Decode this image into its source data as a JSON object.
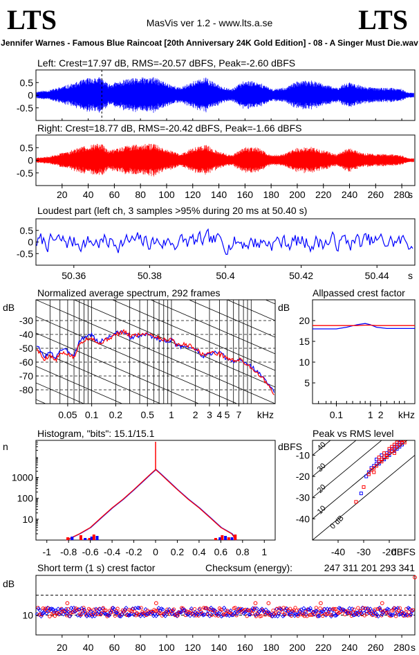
{
  "header": {
    "logo_left": "LTS",
    "logo_right": "LTS",
    "app_title": "MasVis ver 1.2 - www.lts.a.se",
    "track_title": "Jennifer Warnes - Famous Blue Raincoat [20th Anniversary 24K Gold Edition] - 08 - A Singer Must Die.wav"
  },
  "colors": {
    "left": "#0000ff",
    "right": "#ff0000",
    "axis": "#000000",
    "grid_dash": "#000000"
  },
  "chart_data": [
    {
      "id": "waveform-left",
      "type": "line",
      "title": "Left: Crest=17.97 dB, RMS=-20.57 dBFS, Peak=-2.60 dBFS",
      "ylim": [
        -1,
        1
      ],
      "xlim": [
        0,
        290
      ],
      "yticks": [
        0.5,
        0,
        -0.5
      ],
      "ytick_labels": [
        "0.5",
        "0",
        "-0.5"
      ],
      "marker_x": 50.4,
      "envelope_time": [
        0,
        10,
        20,
        30,
        40,
        50,
        55,
        60,
        70,
        80,
        90,
        100,
        110,
        120,
        130,
        140,
        150,
        160,
        170,
        180,
        190,
        200,
        210,
        220,
        230,
        240,
        250,
        260,
        270,
        280,
        285
      ],
      "envelope_amp": [
        0.15,
        0.2,
        0.35,
        0.5,
        0.7,
        0.72,
        0.45,
        0.5,
        0.65,
        0.7,
        0.72,
        0.5,
        0.3,
        0.55,
        0.7,
        0.4,
        0.25,
        0.6,
        0.55,
        0.25,
        0.3,
        0.55,
        0.6,
        0.45,
        0.3,
        0.55,
        0.35,
        0.3,
        0.3,
        0.25,
        0.1
      ]
    },
    {
      "id": "waveform-right",
      "type": "line",
      "title": "Right: Crest=18.77 dB, RMS=-20.42 dBFS, Peak=-1.66 dBFS",
      "ylim": [
        -1,
        1
      ],
      "xlim": [
        0,
        290
      ],
      "yticks": [
        0.5,
        0,
        -0.5
      ],
      "ytick_labels": [
        "0.5",
        "0",
        "-0.5"
      ],
      "xticks": [
        20,
        40,
        60,
        80,
        100,
        120,
        140,
        160,
        180,
        200,
        220,
        240,
        260,
        280
      ],
      "xtick_labels": [
        "20",
        "40",
        "60",
        "80",
        "100",
        "120",
        "140",
        "160",
        "180",
        "200",
        "220",
        "240",
        "260",
        "280"
      ],
      "xunit": "s",
      "envelope_time": [
        0,
        10,
        20,
        30,
        40,
        50,
        55,
        60,
        70,
        80,
        90,
        100,
        110,
        120,
        130,
        140,
        150,
        160,
        170,
        180,
        190,
        200,
        210,
        220,
        230,
        240,
        250,
        260,
        270,
        280,
        285
      ],
      "envelope_amp": [
        0.1,
        0.15,
        0.3,
        0.45,
        0.62,
        0.68,
        0.4,
        0.45,
        0.6,
        0.65,
        0.67,
        0.45,
        0.25,
        0.5,
        0.65,
        0.35,
        0.2,
        0.55,
        0.5,
        0.2,
        0.25,
        0.5,
        0.55,
        0.4,
        0.25,
        0.5,
        0.3,
        0.25,
        0.25,
        0.2,
        0.08
      ]
    },
    {
      "id": "loudest-part",
      "type": "line",
      "title": "Loudest part (left  ch, 3 samples >95% during 20 ms at 50.40 s)",
      "ylim": [
        -1,
        1
      ],
      "xlim": [
        50.35,
        50.45
      ],
      "yticks": [
        0.5,
        0,
        -0.5
      ],
      "ytick_labels": [
        "0.5",
        "0",
        "-0.5"
      ],
      "xticks": [
        50.36,
        50.38,
        50.4,
        50.42,
        50.44
      ],
      "xtick_labels": [
        "50.36",
        "50.38",
        "50.4",
        "50.42",
        "50.44"
      ],
      "xunit": "s",
      "amplitude": 0.32
    },
    {
      "id": "spectrum",
      "type": "line",
      "title": "Normalized average spectrum, 292 frames",
      "ylabel": "dB",
      "xlabel": "kHz",
      "ylim": [
        -90,
        -15
      ],
      "xlim": [
        0.02,
        20
      ],
      "xscale": "log",
      "yticks": [
        -30,
        -40,
        -50,
        -60,
        -70,
        -80
      ],
      "ytick_labels": [
        "-30",
        "-40",
        "-50",
        "-60",
        "-70",
        "-80"
      ],
      "xticks": [
        0.05,
        0.1,
        0.2,
        0.5,
        1,
        2,
        3,
        4,
        5,
        7
      ],
      "xtick_labels": [
        "0.05",
        "0.1",
        "0.2",
        "0.5",
        "1",
        "2",
        "3",
        "4",
        "5",
        "7"
      ],
      "freq_khz": [
        0.02,
        0.025,
        0.03,
        0.035,
        0.04,
        0.05,
        0.06,
        0.07,
        0.08,
        0.1,
        0.12,
        0.15,
        0.2,
        0.25,
        0.3,
        0.4,
        0.5,
        0.6,
        0.8,
        1.0,
        1.2,
        1.5,
        2.0,
        2.5,
        3.0,
        4.0,
        5.0,
        6.0,
        7.0,
        8.0,
        10.0,
        12.0,
        15.0,
        20.0
      ],
      "left_db": [
        -47,
        -56,
        -53,
        -57,
        -51,
        -52,
        -55,
        -45,
        -42,
        -40,
        -46,
        -43,
        -39,
        -38,
        -42,
        -41,
        -40,
        -42,
        -45,
        -44,
        -49,
        -48,
        -51,
        -56,
        -54,
        -53,
        -58,
        -60,
        -58,
        -60,
        -63,
        -67,
        -73,
        -83
      ],
      "right_db": [
        -50,
        -58,
        -55,
        -59,
        -54,
        -54,
        -57,
        -47,
        -44,
        -42,
        -47,
        -44,
        -40,
        -38,
        -41,
        -40,
        -39,
        -41,
        -44,
        -43,
        -48,
        -47,
        -50,
        -55,
        -53,
        -54,
        -57,
        -59,
        -58,
        -60,
        -64,
        -68,
        -74,
        -85
      ]
    },
    {
      "id": "allpassed-crest",
      "type": "line",
      "title": "Allpassed crest factor",
      "ylabel": "dB",
      "xlabel": "kHz",
      "ylim": [
        0,
        25
      ],
      "xlim": [
        0.02,
        20
      ],
      "xscale": "log",
      "yticks": [
        20,
        15,
        10,
        5
      ],
      "ytick_labels": [
        "20",
        "15",
        "10",
        "5"
      ],
      "xticks": [
        0.1,
        1,
        2
      ],
      "xtick_labels": [
        "0.1",
        "1",
        "2"
      ],
      "freq_khz": [
        0.02,
        0.1,
        0.2,
        0.4,
        0.7,
        1.0,
        1.5,
        3.0,
        20.0
      ],
      "left_db": [
        18,
        18,
        18.4,
        19,
        19.3,
        19,
        18.4,
        18.1,
        18.1
      ],
      "right_db": [
        18.8,
        18.8,
        18.8,
        18.8,
        18.9,
        18.9,
        18.8,
        18.8,
        18.8
      ]
    },
    {
      "id": "histogram",
      "type": "line",
      "title": "Histogram, \"bits\": 15.1/15.1",
      "ylabel": "n",
      "ylim": [
        1,
        60000
      ],
      "yscale": "log",
      "xlim": [
        -1.1,
        1.1
      ],
      "yticks": [
        10,
        100,
        1000
      ],
      "ytick_labels": [
        "10",
        "100",
        "1000"
      ],
      "xticks": [
        -1,
        -0.8,
        -0.6,
        -0.4,
        -0.2,
        0,
        0.2,
        0.4,
        0.6,
        0.8,
        1
      ],
      "xtick_labels": [
        "-1",
        "-0.8",
        "-0.6",
        "-0.4",
        "-0.2",
        "0",
        "0.2",
        "0.4",
        "0.6",
        "0.8",
        "1"
      ],
      "x": [
        -0.82,
        -0.7,
        -0.6,
        -0.5,
        -0.4,
        -0.3,
        -0.2,
        -0.1,
        -0.05,
        0,
        0.05,
        0.1,
        0.2,
        0.3,
        0.4,
        0.5,
        0.6,
        0.7,
        0.74
      ],
      "counts": [
        1,
        2,
        4,
        12,
        35,
        90,
        260,
        800,
        1400,
        2400,
        1400,
        800,
        260,
        90,
        35,
        12,
        4,
        2,
        1
      ]
    },
    {
      "id": "peak-vs-rms",
      "type": "scatter",
      "title": "Peak vs RMS level",
      "ylabel": "dBFS",
      "xlabel": "dBFS",
      "xlim": [
        -50,
        -10
      ],
      "ylim": [
        -50,
        -3
      ],
      "xticks": [
        -40,
        -30,
        -20
      ],
      "xtick_labels": [
        "-40",
        "-30",
        "-20"
      ],
      "yticks": [
        -10,
        -20,
        -30,
        -40
      ],
      "ytick_labels": [
        "-10",
        "-20",
        "-30",
        "-40"
      ],
      "diagonal_labels": [
        "40",
        "30",
        "20",
        "10",
        "0 dB"
      ],
      "left_rms": [
        -31,
        -29,
        -28,
        -27,
        -26,
        -25,
        -25,
        -24,
        -23,
        -23,
        -22,
        -21,
        -21,
        -20,
        -20,
        -19,
        -19,
        -18,
        -18,
        -17,
        -17,
        -16,
        -16,
        -15,
        -15,
        -24,
        -22,
        -20
      ],
      "left_peak": [
        -28,
        -20,
        -18,
        -16,
        -15,
        -14,
        -12,
        -13,
        -12,
        -10,
        -11,
        -10,
        -9,
        -9,
        -8,
        -8,
        -7,
        -8,
        -6,
        -7,
        -5,
        -6,
        -4,
        -5,
        -4,
        -14,
        -12,
        -10
      ],
      "right_rms": [
        -33,
        -30,
        -28,
        -27,
        -26,
        -25,
        -24,
        -24,
        -23,
        -22,
        -22,
        -21,
        -20,
        -20,
        -19,
        -19,
        -18,
        -18,
        -17,
        -17,
        -16,
        -16,
        -15,
        -15,
        -14,
        -26,
        -23,
        -21,
        -18
      ],
      "right_peak": [
        -32,
        -25,
        -19,
        -17,
        -16,
        -15,
        -13,
        -11,
        -12,
        -11,
        -9,
        -10,
        -9,
        -7,
        -8,
        -6,
        -7,
        -5,
        -6,
        -4,
        -5,
        -3,
        -4,
        -3,
        -4,
        -18,
        -13,
        -11,
        -9
      ]
    },
    {
      "id": "short-term-crest",
      "type": "scatter",
      "title": "Short term (1 s) crest factor",
      "checksum_label": "Checksum (energy):",
      "checksum_value": "247 311 201 293 341",
      "ylabel": "dB",
      "ylim": [
        0,
        30
      ],
      "xlim": [
        0,
        290
      ],
      "yticks": [
        10
      ],
      "ytick_labels": [
        "10"
      ],
      "dashed_y": 20,
      "xticks": [
        20,
        40,
        60,
        80,
        100,
        120,
        140,
        160,
        180,
        200,
        220,
        240,
        260,
        280
      ],
      "xtick_labels": [
        "20",
        "40",
        "60",
        "80",
        "100",
        "120",
        "140",
        "160",
        "180",
        "200",
        "220",
        "240",
        "260",
        "280"
      ],
      "xunit": "s",
      "base_db": 11.5,
      "spread_db": 2.2,
      "outliers": [
        [
          24,
          16
        ],
        [
          92,
          16
        ],
        [
          168,
          16
        ],
        [
          178,
          16
        ],
        [
          218,
          16
        ],
        [
          265,
          16
        ],
        [
          290,
          29
        ]
      ]
    }
  ]
}
